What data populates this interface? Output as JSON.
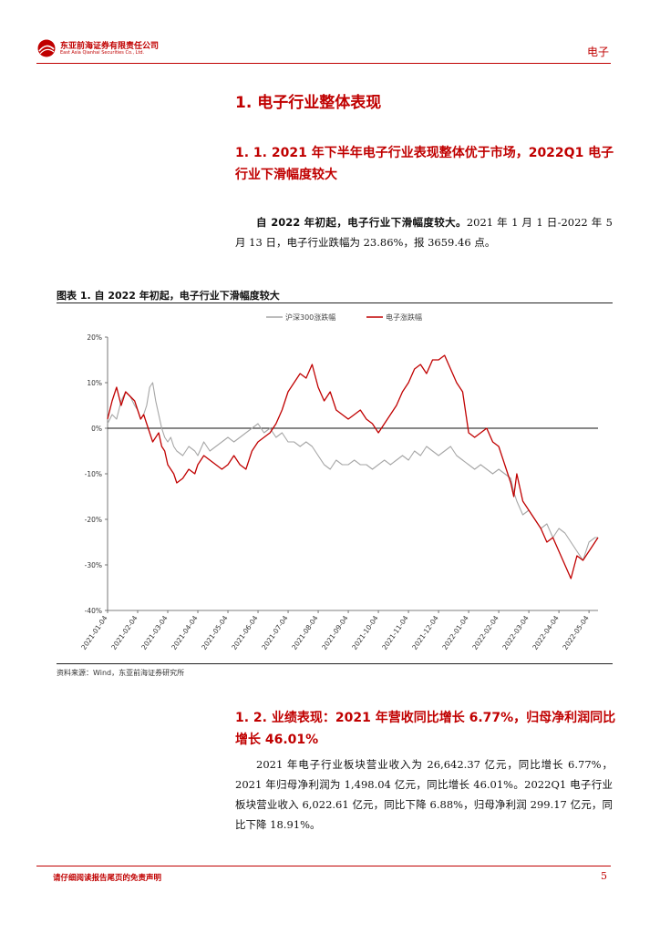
{
  "header": {
    "logo_cn": "东亚前海证券有限责任公司",
    "logo_en": "East Asia Qianhai Securities Co., Ltd.",
    "section_tag": "电子",
    "brand_color": "#c00000"
  },
  "section1": {
    "title": "1. 电子行业整体表现"
  },
  "section1_1": {
    "title": "1. 1. 2021 年下半年电子行业表现整体优于市场，2022Q1 电子行业下滑幅度较大",
    "lead": "自 2022 年初起，电子行业下滑幅度较大。",
    "body": "2021 年 1 月 1 日-2022 年 5 月 13 日，电子行业跌幅为 23.86%，报 3659.46 点。"
  },
  "figure1": {
    "title": "图表 1.  自 2022 年初起，电子行业下滑幅度较大",
    "source": "资料来源：Wind，东亚前海证券研究所"
  },
  "chart_data": {
    "type": "line",
    "title": "",
    "xlabel": "",
    "ylabel": "",
    "ylim": [
      -40,
      20
    ],
    "y_ticks": [
      "20%",
      "10%",
      "0%",
      "-10%",
      "-20%",
      "-30%",
      "-40%"
    ],
    "y_tick_values": [
      20,
      10,
      0,
      -10,
      -20,
      -30,
      -40
    ],
    "x_ticks": [
      "2021-01-04",
      "2021-02-04",
      "2021-03-04",
      "2021-04-04",
      "2021-05-04",
      "2021-06-04",
      "2021-07-04",
      "2021-08-04",
      "2021-09-04",
      "2021-10-04",
      "2021-11-04",
      "2021-12-04",
      "2022-01-04",
      "2022-02-04",
      "2022-03-04",
      "2022-04-04",
      "2022-05-04"
    ],
    "x_tick_index": [
      0,
      1,
      2,
      3,
      4,
      5,
      6,
      7,
      8,
      9,
      10,
      11,
      12,
      13,
      14,
      15,
      16
    ],
    "x_range": [
      0,
      16.3
    ],
    "legend_position": "top",
    "grid": false,
    "series": [
      {
        "name": "沪深300涨跌幅",
        "color": "#a6a6a6",
        "x": [
          0,
          0.15,
          0.3,
          0.45,
          0.6,
          0.75,
          0.9,
          1.0,
          1.1,
          1.2,
          1.3,
          1.4,
          1.5,
          1.6,
          1.7,
          1.8,
          1.9,
          2.0,
          2.1,
          2.2,
          2.3,
          2.5,
          2.7,
          2.9,
          3.0,
          3.2,
          3.4,
          3.6,
          3.8,
          4.0,
          4.2,
          4.4,
          4.6,
          4.8,
          5.0,
          5.2,
          5.4,
          5.6,
          5.8,
          6.0,
          6.2,
          6.4,
          6.6,
          6.8,
          7.0,
          7.2,
          7.4,
          7.6,
          7.8,
          8.0,
          8.2,
          8.4,
          8.6,
          8.8,
          9.0,
          9.2,
          9.4,
          9.6,
          9.8,
          10.0,
          10.2,
          10.4,
          10.6,
          10.8,
          11.0,
          11.2,
          11.4,
          11.6,
          11.8,
          12.0,
          12.2,
          12.4,
          12.6,
          12.8,
          13.0,
          13.2,
          13.4,
          13.5,
          13.6,
          13.8,
          14.0,
          14.2,
          14.4,
          14.6,
          14.8,
          15.0,
          15.2,
          15.4,
          15.6,
          15.8,
          16.0,
          16.2,
          16.3
        ],
        "values": [
          1,
          3,
          2,
          6,
          8,
          7,
          5,
          4,
          2,
          3,
          5,
          9,
          10,
          6,
          3,
          0,
          -2,
          -3,
          -2,
          -4,
          -5,
          -6,
          -4,
          -5,
          -6,
          -3,
          -5,
          -4,
          -3,
          -2,
          -3,
          -2,
          -1,
          0,
          1,
          -1,
          0,
          -2,
          -1,
          -3,
          -3,
          -4,
          -3,
          -4,
          -6,
          -8,
          -9,
          -7,
          -8,
          -8,
          -7,
          -8,
          -8,
          -9,
          -8,
          -7,
          -8,
          -7,
          -6,
          -7,
          -5,
          -6,
          -4,
          -5,
          -6,
          -5,
          -4,
          -6,
          -7,
          -8,
          -9,
          -8,
          -9,
          -10,
          -9,
          -10,
          -11,
          -14,
          -16,
          -19,
          -18,
          -20,
          -22,
          -21,
          -24,
          -22,
          -23,
          -25,
          -27,
          -29,
          -25,
          -24,
          -24
        ]
      },
      {
        "name": "电子涨跌幅",
        "color": "#c00000",
        "x": [
          0,
          0.15,
          0.3,
          0.45,
          0.6,
          0.75,
          0.9,
          1.0,
          1.1,
          1.2,
          1.3,
          1.4,
          1.5,
          1.6,
          1.7,
          1.8,
          1.9,
          2.0,
          2.1,
          2.2,
          2.3,
          2.5,
          2.7,
          2.9,
          3.0,
          3.2,
          3.4,
          3.6,
          3.8,
          4.0,
          4.2,
          4.4,
          4.6,
          4.8,
          5.0,
          5.2,
          5.4,
          5.6,
          5.8,
          6.0,
          6.2,
          6.4,
          6.6,
          6.8,
          7.0,
          7.2,
          7.4,
          7.6,
          7.8,
          8.0,
          8.2,
          8.4,
          8.6,
          8.8,
          9.0,
          9.2,
          9.4,
          9.6,
          9.8,
          10.0,
          10.2,
          10.4,
          10.6,
          10.8,
          11.0,
          11.2,
          11.4,
          11.6,
          11.8,
          12.0,
          12.2,
          12.4,
          12.6,
          12.8,
          13.0,
          13.2,
          13.4,
          13.5,
          13.6,
          13.8,
          14.0,
          14.2,
          14.4,
          14.6,
          14.8,
          15.0,
          15.2,
          15.4,
          15.6,
          15.8,
          16.0,
          16.2,
          16.3
        ],
        "values": [
          2,
          6,
          9,
          5,
          8,
          7,
          6,
          4,
          2,
          3,
          1,
          -1,
          -3,
          -2,
          -1,
          -4,
          -5,
          -8,
          -9,
          -10,
          -12,
          -11,
          -9,
          -10,
          -8,
          -6,
          -7,
          -8,
          -9,
          -8,
          -6,
          -8,
          -9,
          -5,
          -3,
          -2,
          -1,
          1,
          4,
          8,
          10,
          12,
          11,
          14,
          9,
          6,
          8,
          4,
          3,
          2,
          3,
          4,
          2,
          1,
          -1,
          1,
          3,
          5,
          8,
          10,
          13,
          14,
          12,
          15,
          15,
          16,
          13,
          10,
          8,
          -1,
          -2,
          -1,
          0,
          -3,
          -4,
          -8,
          -12,
          -15,
          -10,
          -16,
          -18,
          -20,
          -22,
          -25,
          -24,
          -27,
          -30,
          -33,
          -28,
          -29,
          -27,
          -25,
          -24
        ]
      }
    ]
  },
  "section1_2": {
    "title": "1. 2. 业绩表现：2021 年营收同比增长 6.77%，归母净利润同比增长 46.01%",
    "body": "2021 年电子行业板块营业收入为 26,642.37 亿元，同比增长 6.77%，2021 年归母净利润为 1,498.04 亿元，同比增长 46.01%。2022Q1 电子行业板块营业收入 6,022.61 亿元，同比下降 6.88%，归母净利润 299.17 亿元，同比下降 18.91%。"
  },
  "footer": {
    "note": "请仔细阅读报告尾页的免责声明",
    "page_number": "5"
  }
}
